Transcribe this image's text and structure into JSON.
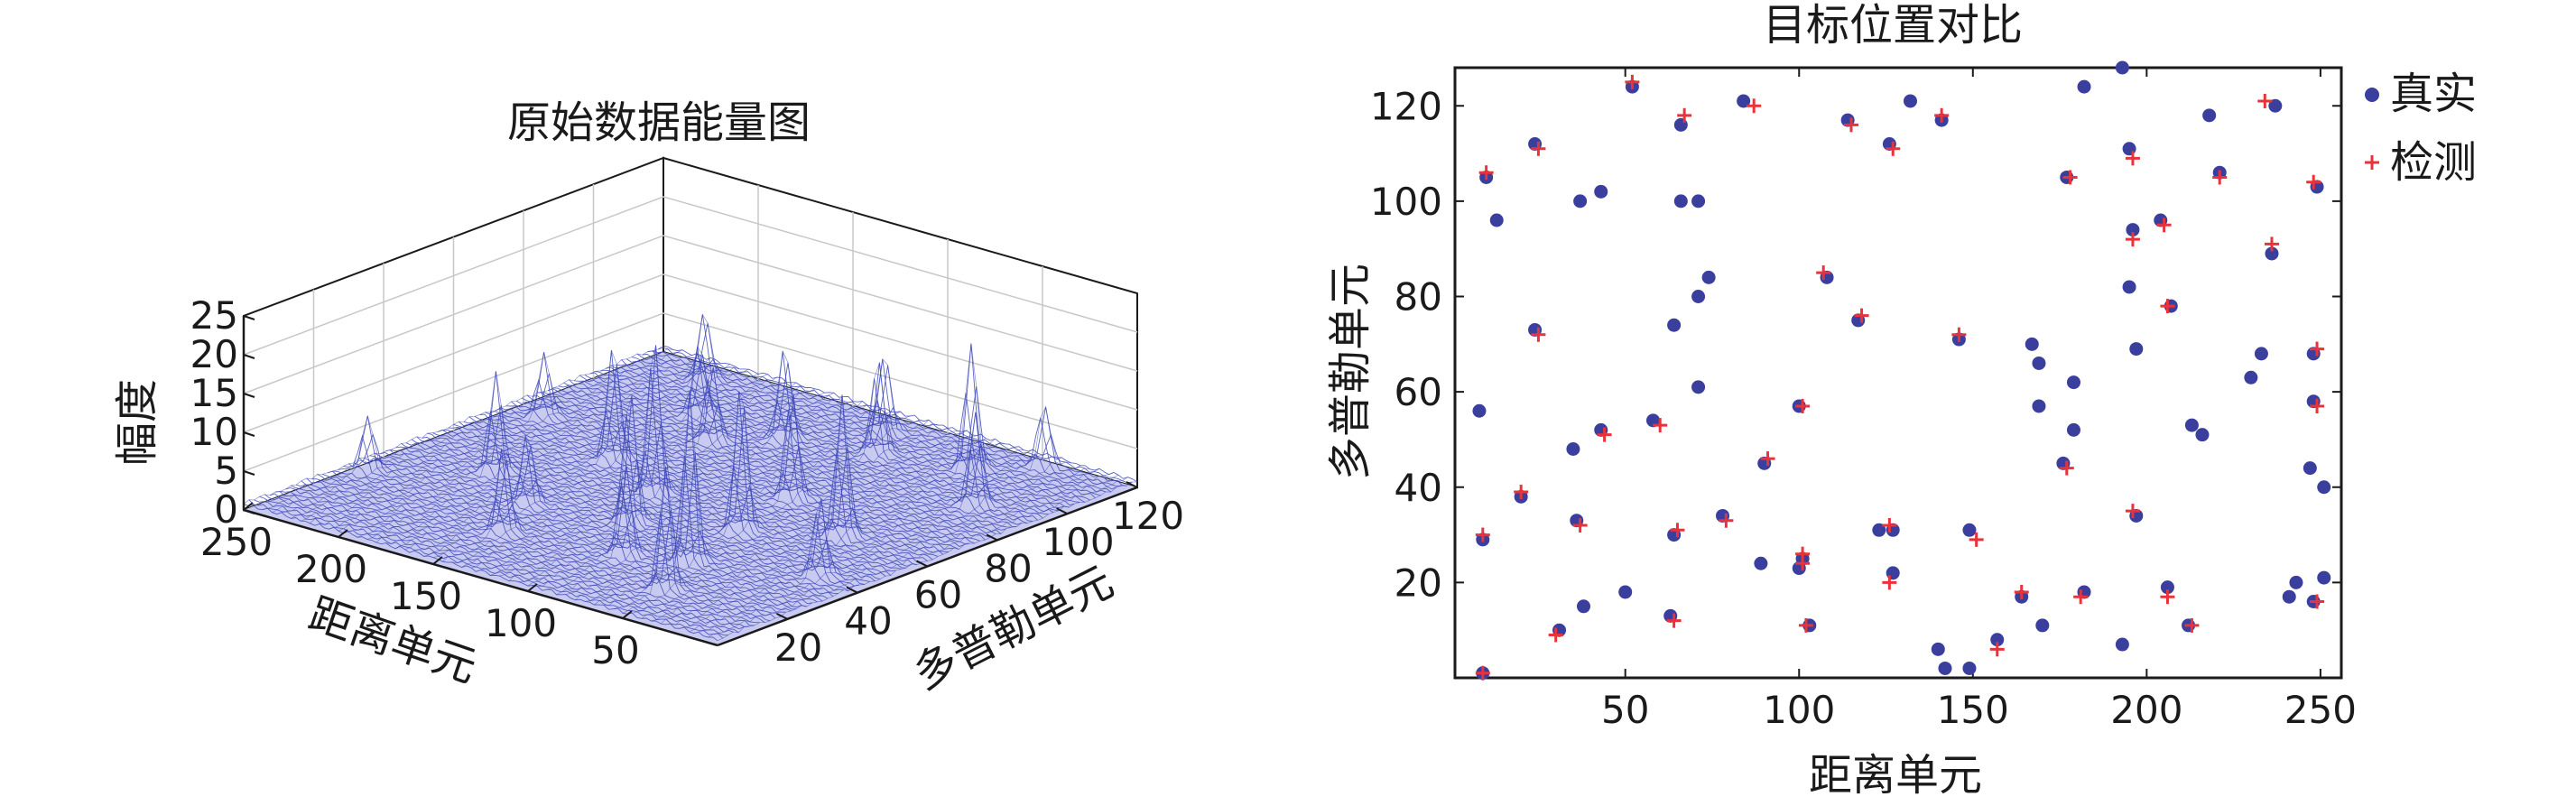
{
  "colors": {
    "mesh": "#3f4ab8",
    "surface_fill": "#c9caf0",
    "true_marker": "#3a3f9e",
    "detect_marker": "#e8333a",
    "axis": "#1a1a1a",
    "grid": "#c8c8c8"
  },
  "chart_data": [
    {
      "type": "surface3d",
      "title": "原始数据能量图",
      "xlabel": "距离单元",
      "ylabel": "多普勒单元",
      "zlabel": "幅度",
      "xlim": [
        0,
        250
      ],
      "ylim": [
        0,
        120
      ],
      "zlim": [
        0,
        25
      ],
      "xticks": [
        "250",
        "200",
        "150",
        "100",
        "50"
      ],
      "yticks": [
        "20",
        "40",
        "60",
        "80",
        "100",
        "120"
      ],
      "zticks": [
        "0",
        "5",
        "10",
        "15",
        "20",
        "25"
      ],
      "grid": true,
      "peaks": [
        {
          "x": 60,
          "y": 105,
          "z": 16
        },
        {
          "x": 100,
          "y": 100,
          "z": 12
        },
        {
          "x": 160,
          "y": 85,
          "z": 10
        },
        {
          "x": 210,
          "y": 110,
          "z": 9
        },
        {
          "x": 135,
          "y": 55,
          "z": 20
        },
        {
          "x": 120,
          "y": 40,
          "z": 17
        },
        {
          "x": 90,
          "y": 70,
          "z": 14
        },
        {
          "x": 70,
          "y": 30,
          "z": 22
        },
        {
          "x": 45,
          "y": 60,
          "z": 18
        },
        {
          "x": 150,
          "y": 20,
          "z": 11
        },
        {
          "x": 200,
          "y": 45,
          "z": 13
        },
        {
          "x": 30,
          "y": 90,
          "z": 12
        },
        {
          "x": 175,
          "y": 65,
          "z": 15
        },
        {
          "x": 115,
          "y": 110,
          "z": 10
        },
        {
          "x": 230,
          "y": 75,
          "z": 8
        },
        {
          "x": 55,
          "y": 15,
          "z": 16
        },
        {
          "x": 95,
          "y": 25,
          "z": 12
        },
        {
          "x": 185,
          "y": 95,
          "z": 9
        },
        {
          "x": 240,
          "y": 30,
          "z": 7
        },
        {
          "x": 20,
          "y": 40,
          "z": 10
        },
        {
          "x": 140,
          "y": 95,
          "z": 12
        },
        {
          "x": 80,
          "y": 50,
          "z": 19
        },
        {
          "x": 165,
          "y": 35,
          "z": 9
        },
        {
          "x": 40,
          "y": 115,
          "z": 8
        }
      ]
    },
    {
      "type": "scatter",
      "title": "目标位置对比",
      "xlabel": "距离单元",
      "ylabel": "多普勒单元",
      "xlim": [
        1,
        256
      ],
      "ylim": [
        0,
        128
      ],
      "xticks": [
        50,
        100,
        150,
        200,
        250
      ],
      "yticks": [
        20,
        40,
        60,
        80,
        100,
        120
      ],
      "legend": "outside-top-right",
      "series": [
        {
          "name": "真实",
          "marker": "circle",
          "points": [
            [
              10,
              105
            ],
            [
              13,
              96
            ],
            [
              24,
              112
            ],
            [
              37,
              100
            ],
            [
              43,
              102
            ],
            [
              52,
              124
            ],
            [
              66,
              116
            ],
            [
              66,
              100
            ],
            [
              71,
              100
            ],
            [
              84,
              121
            ],
            [
              114,
              117
            ],
            [
              126,
              112
            ],
            [
              132,
              121
            ],
            [
              141,
              117
            ],
            [
              177,
              105
            ],
            [
              182,
              124
            ],
            [
              193,
              128
            ],
            [
              195,
              111
            ],
            [
              204,
              96
            ],
            [
              218,
              118
            ],
            [
              221,
              106
            ],
            [
              249,
              103
            ],
            [
              237,
              120
            ],
            [
              24,
              73
            ],
            [
              64,
              74
            ],
            [
              71,
              80
            ],
            [
              74,
              84
            ],
            [
              108,
              84
            ],
            [
              117,
              75
            ],
            [
              146,
              71
            ],
            [
              167,
              70
            ],
            [
              169,
              66
            ],
            [
              196,
              94
            ],
            [
              195,
              82
            ],
            [
              197,
              69
            ],
            [
              207,
              78
            ],
            [
              236,
              89
            ],
            [
              248,
              68
            ],
            [
              8,
              56
            ],
            [
              58,
              54
            ],
            [
              71,
              61
            ],
            [
              100,
              57
            ],
            [
              179,
              62
            ],
            [
              230,
              63
            ],
            [
              169,
              57
            ],
            [
              179,
              52
            ],
            [
              233,
              68
            ],
            [
              248,
              58
            ],
            [
              216,
              51
            ],
            [
              213,
              53
            ],
            [
              247,
              44
            ],
            [
              251,
              40
            ],
            [
              35,
              48
            ],
            [
              43,
              52
            ],
            [
              90,
              45
            ],
            [
              9,
              29
            ],
            [
              20,
              38
            ],
            [
              36,
              33
            ],
            [
              64,
              30
            ],
            [
              78,
              34
            ],
            [
              89,
              24
            ],
            [
              101,
              25
            ],
            [
              100,
              23
            ],
            [
              123,
              31
            ],
            [
              127,
              31
            ],
            [
              149,
              31
            ],
            [
              176,
              45
            ],
            [
              197,
              34
            ],
            [
              31,
              10
            ],
            [
              38,
              15
            ],
            [
              50,
              18
            ],
            [
              63,
              13
            ],
            [
              103,
              11
            ],
            [
              127,
              22
            ],
            [
              140,
              6
            ],
            [
              142,
              2
            ],
            [
              149,
              2
            ],
            [
              157,
              8
            ],
            [
              164,
              17
            ],
            [
              170,
              11
            ],
            [
              182,
              18
            ],
            [
              193,
              7
            ],
            [
              206,
              19
            ],
            [
              212,
              11
            ],
            [
              241,
              17
            ],
            [
              243,
              20
            ],
            [
              248,
              16
            ],
            [
              251,
              21
            ],
            [
              9,
              1
            ]
          ]
        },
        {
          "name": "检测",
          "marker": "plus",
          "points": [
            [
              10,
              106
            ],
            [
              25,
              111
            ],
            [
              52,
              125
            ],
            [
              67,
              118
            ],
            [
              87,
              120
            ],
            [
              115,
              116
            ],
            [
              127,
              111
            ],
            [
              141,
              118
            ],
            [
              178,
              105
            ],
            [
              196,
              109
            ],
            [
              205,
              95
            ],
            [
              221,
              105
            ],
            [
              248,
              104
            ],
            [
              234,
              121
            ],
            [
              25,
              72
            ],
            [
              107,
              85
            ],
            [
              118,
              76
            ],
            [
              146,
              72
            ],
            [
              196,
              92
            ],
            [
              206,
              78
            ],
            [
              236,
              91
            ],
            [
              249,
              69
            ],
            [
              60,
              53
            ],
            [
              101,
              57
            ],
            [
              249,
              57
            ],
            [
              44,
              51
            ],
            [
              91,
              46
            ],
            [
              9,
              30
            ],
            [
              20,
              39
            ],
            [
              37,
              32
            ],
            [
              65,
              31
            ],
            [
              79,
              33
            ],
            [
              101,
              26
            ],
            [
              101,
              24
            ],
            [
              126,
              32
            ],
            [
              151,
              29
            ],
            [
              177,
              44
            ],
            [
              196,
              35
            ],
            [
              30,
              9
            ],
            [
              64,
              12
            ],
            [
              102,
              11
            ],
            [
              126,
              20
            ],
            [
              157,
              6
            ],
            [
              164,
              18
            ],
            [
              181,
              17
            ],
            [
              206,
              17
            ],
            [
              213,
              11
            ],
            [
              249,
              16
            ],
            [
              9,
              1
            ]
          ]
        }
      ]
    }
  ]
}
